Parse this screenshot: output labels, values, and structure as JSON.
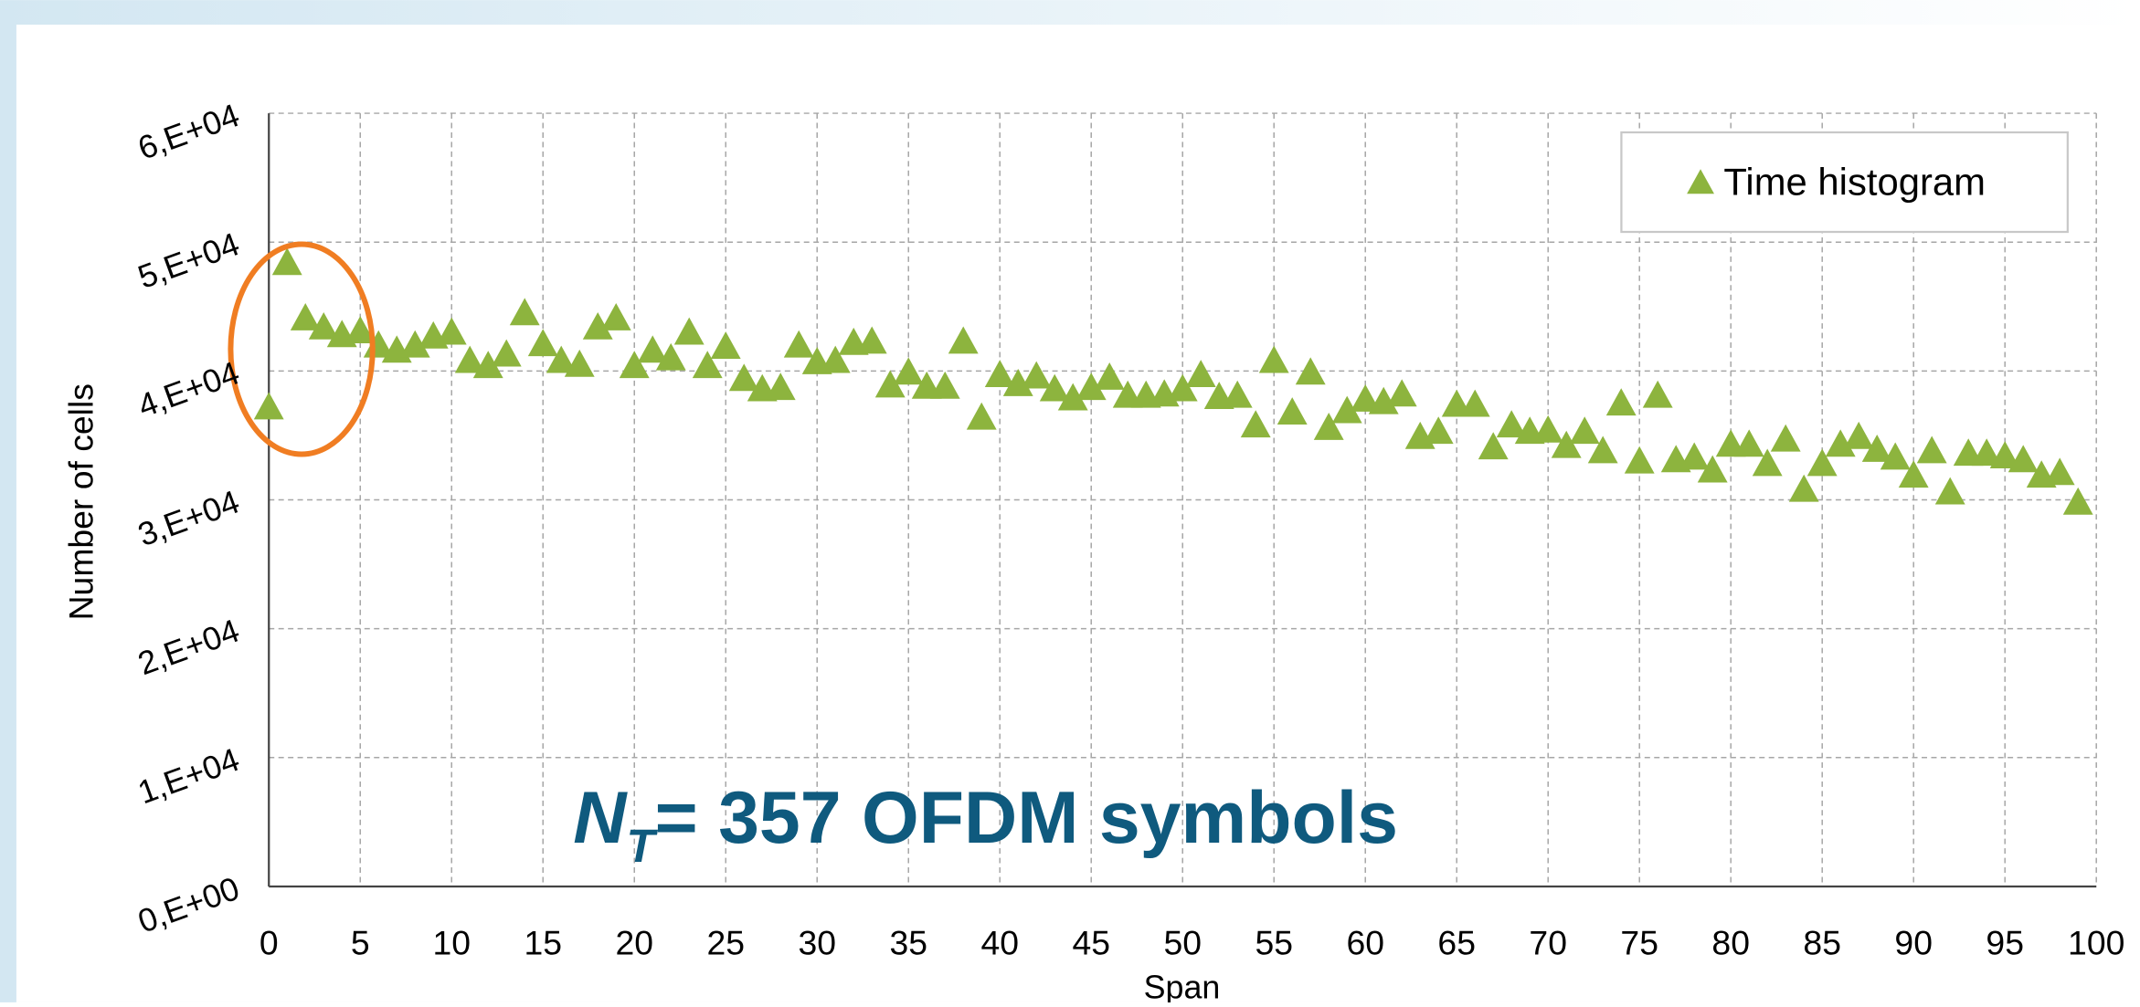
{
  "chart_data": {
    "type": "scatter",
    "x_label": "Span",
    "y_label": "Number of cells",
    "annotation": {
      "main": "N",
      "subscript": "T",
      "rest": "= 357 OFDM symbols"
    },
    "xlim": [
      0,
      100
    ],
    "ylim": [
      0,
      60000
    ],
    "xticks": [
      0,
      5,
      10,
      15,
      20,
      25,
      30,
      35,
      40,
      45,
      50,
      55,
      60,
      65,
      70,
      75,
      80,
      85,
      90,
      95,
      100
    ],
    "yticks": [
      {
        "value": 0,
        "label": "0,E+00"
      },
      {
        "value": 10000,
        "label": "1,E+04"
      },
      {
        "value": 20000,
        "label": "2,E+04"
      },
      {
        "value": 30000,
        "label": "3,E+04"
      },
      {
        "value": 40000,
        "label": "4,E+04"
      },
      {
        "value": 50000,
        "label": "5,E+04"
      },
      {
        "value": 60000,
        "label": "6,E+04"
      }
    ],
    "grid": true,
    "legend": "top-right",
    "series": [
      {
        "name": "Time histogram",
        "color": "#8db43e",
        "x": [
          0,
          1,
          2,
          3,
          4,
          5,
          6,
          7,
          8,
          9,
          10,
          11,
          12,
          13,
          14,
          15,
          16,
          17,
          18,
          19,
          20,
          21,
          22,
          23,
          24,
          25,
          26,
          27,
          28,
          29,
          30,
          31,
          32,
          33,
          34,
          35,
          36,
          37,
          38,
          39,
          40,
          41,
          42,
          43,
          44,
          45,
          46,
          47,
          48,
          49,
          50,
          51,
          52,
          53,
          54,
          55,
          56,
          57,
          58,
          59,
          60,
          61,
          62,
          63,
          64,
          65,
          66,
          67,
          68,
          69,
          70,
          71,
          72,
          73,
          74,
          75,
          76,
          77,
          78,
          79,
          80,
          81,
          82,
          83,
          84,
          85,
          86,
          87,
          88,
          89,
          90,
          91,
          92,
          93,
          94,
          95,
          96,
          97,
          98,
          99
        ],
        "values": [
          37200,
          48400,
          44100,
          43400,
          42800,
          43100,
          42000,
          41600,
          42000,
          42700,
          43000,
          40800,
          40400,
          41300,
          44500,
          42100,
          40800,
          40500,
          43400,
          44100,
          40400,
          41600,
          41000,
          43000,
          40400,
          41900,
          39400,
          38600,
          38700,
          42000,
          40700,
          40800,
          42200,
          42300,
          38900,
          39900,
          38800,
          38800,
          42300,
          36400,
          39700,
          39000,
          39600,
          38600,
          37900,
          38700,
          39500,
          38100,
          38100,
          38200,
          38600,
          39700,
          38000,
          38100,
          35800,
          40800,
          36800,
          39900,
          35600,
          36900,
          37800,
          37600,
          38200,
          34900,
          35300,
          37400,
          37400,
          34100,
          35800,
          35300,
          35400,
          34200,
          35300,
          33800,
          37500,
          33000,
          38100,
          33100,
          33300,
          32300,
          34300,
          34300,
          32800,
          34700,
          30800,
          32800,
          34300,
          34900,
          33900,
          33300,
          31900,
          33800,
          30600,
          33600,
          33600,
          33400,
          33100,
          31900,
          32100,
          29800
        ]
      }
    ]
  }
}
